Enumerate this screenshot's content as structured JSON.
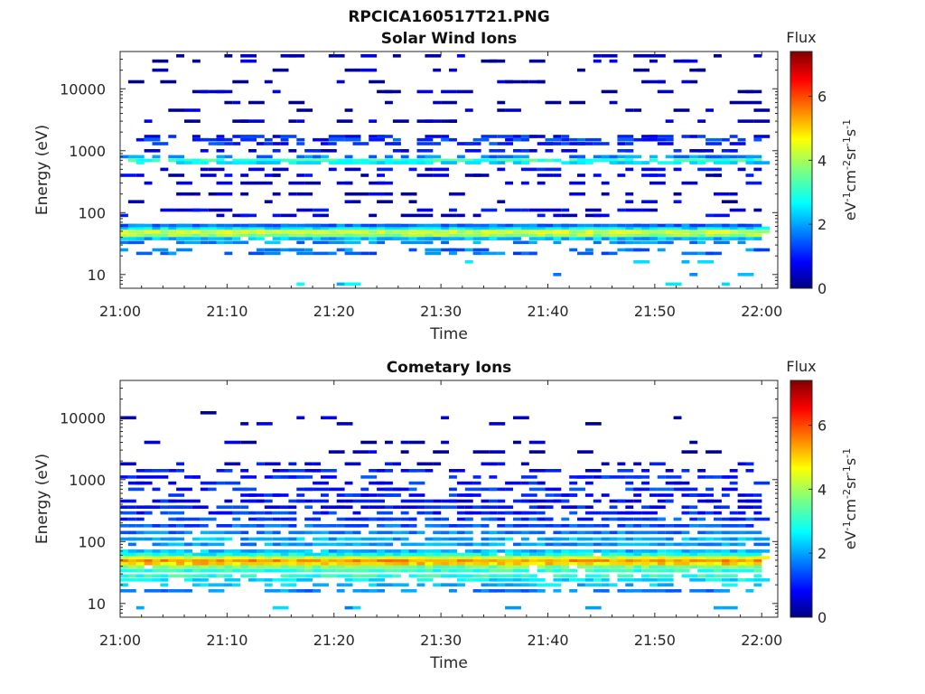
{
  "figure": {
    "title": "RPCICA160517T21.PNG"
  },
  "chart_data": [
    {
      "type": "heatmap",
      "title": "Solar Wind Ions",
      "xlabel": "Time",
      "ylabel": "Energy (eV)",
      "x_ticks": [
        "21:00",
        "21:10",
        "21:20",
        "21:30",
        "21:40",
        "21:50",
        "22:00"
      ],
      "y_ticks": [
        "10",
        "100",
        "1000",
        "10000"
      ],
      "y_scale": "log",
      "ylim": [
        6,
        40000
      ],
      "xlim_minutes": [
        0,
        61.5
      ],
      "colorbar": {
        "label": "Flux",
        "unit": "eV-1cm-2sr-1s-1",
        "ticks": [
          "0",
          "2",
          "4",
          "6"
        ],
        "range": [
          0,
          7.4
        ]
      },
      "bands": [
        {
          "energy": 49,
          "value": 4.3,
          "coverage": 1.0
        },
        {
          "energy": 43,
          "value": 3.8,
          "coverage": 1.0
        },
        {
          "energy": 56,
          "value": 2.6,
          "coverage": 1.0
        },
        {
          "energy": 62,
          "value": 1.6,
          "coverage": 1.0
        },
        {
          "energy": 38,
          "value": 2.2,
          "coverage": 0.9
        },
        {
          "energy": 33,
          "value": 1.9,
          "coverage": 0.45
        },
        {
          "energy": 25,
          "value": 1.7,
          "coverage": 0.3
        },
        {
          "energy": 22,
          "value": 1.6,
          "coverage": 0.3
        },
        {
          "energy": 700,
          "value": 3.1,
          "coverage": 0.75
        },
        {
          "energy": 640,
          "value": 2.4,
          "coverage": 0.6
        },
        {
          "energy": 800,
          "value": 1.8,
          "coverage": 0.55
        },
        {
          "energy": 1500,
          "value": 1.2,
          "coverage": 0.5
        },
        {
          "energy": 1700,
          "value": 1.0,
          "coverage": 0.4
        },
        {
          "energy": 1300,
          "value": 1.1,
          "coverage": 0.45
        },
        {
          "energy": 1000,
          "value": 0.8,
          "coverage": 0.35
        },
        {
          "energy": 500,
          "value": 0.8,
          "coverage": 0.3
        },
        {
          "energy": 400,
          "value": 0.6,
          "coverage": 0.3
        },
        {
          "energy": 300,
          "value": 0.6,
          "coverage": 0.25
        },
        {
          "energy": 200,
          "value": 0.5,
          "coverage": 0.25
        },
        {
          "energy": 150,
          "value": 0.5,
          "coverage": 0.2
        },
        {
          "energy": 110,
          "value": 0.7,
          "coverage": 0.25
        },
        {
          "energy": 90,
          "value": 0.6,
          "coverage": 0.3
        },
        {
          "energy": 3000,
          "value": 0.3,
          "coverage": 0.25
        },
        {
          "energy": 4500,
          "value": 0.3,
          "coverage": 0.2
        },
        {
          "energy": 6000,
          "value": 0.3,
          "coverage": 0.15
        },
        {
          "energy": 9000,
          "value": 0.3,
          "coverage": 0.2
        },
        {
          "energy": 13000,
          "value": 0.3,
          "coverage": 0.15
        },
        {
          "energy": 20000,
          "value": 0.3,
          "coverage": 0.15
        },
        {
          "energy": 28000,
          "value": 0.3,
          "coverage": 0.15
        },
        {
          "energy": 34000,
          "value": 0.3,
          "coverage": 0.2
        },
        {
          "energy": 16,
          "value": 2.2,
          "coverage": 0.08
        },
        {
          "energy": 10,
          "value": 2.0,
          "coverage": 0.03
        },
        {
          "energy": 7,
          "value": 2.3,
          "coverage": 0.06
        }
      ]
    },
    {
      "type": "heatmap",
      "title": "Cometary Ions",
      "xlabel": "Time",
      "ylabel": "Energy (eV)",
      "x_ticks": [
        "21:00",
        "21:10",
        "21:20",
        "21:30",
        "21:40",
        "21:50",
        "22:00"
      ],
      "y_ticks": [
        "10",
        "100",
        "1000",
        "10000"
      ],
      "y_scale": "log",
      "ylim": [
        6,
        40000
      ],
      "xlim_minutes": [
        0,
        61.5
      ],
      "colorbar": {
        "label": "Flux",
        "unit": "eV-1cm-2sr-1s-1",
        "ticks": [
          "0",
          "2",
          "4",
          "6"
        ],
        "range": [
          0,
          7.4
        ]
      },
      "bands": [
        {
          "energy": 49,
          "value": 5.4,
          "coverage": 1.0
        },
        {
          "energy": 44,
          "value": 5.0,
          "coverage": 1.0
        },
        {
          "energy": 55,
          "value": 4.4,
          "coverage": 1.0
        },
        {
          "energy": 39,
          "value": 3.6,
          "coverage": 0.95
        },
        {
          "energy": 34,
          "value": 3.0,
          "coverage": 0.9
        },
        {
          "energy": 62,
          "value": 2.8,
          "coverage": 0.95
        },
        {
          "energy": 70,
          "value": 2.2,
          "coverage": 0.9
        },
        {
          "energy": 28,
          "value": 3.0,
          "coverage": 0.7
        },
        {
          "energy": 24,
          "value": 2.6,
          "coverage": 0.65
        },
        {
          "energy": 20,
          "value": 2.3,
          "coverage": 0.5
        },
        {
          "energy": 16,
          "value": 1.8,
          "coverage": 0.5
        },
        {
          "energy": 90,
          "value": 1.9,
          "coverage": 0.85
        },
        {
          "energy": 110,
          "value": 2.1,
          "coverage": 0.85
        },
        {
          "energy": 140,
          "value": 1.7,
          "coverage": 0.8
        },
        {
          "energy": 180,
          "value": 1.5,
          "coverage": 0.75
        },
        {
          "energy": 230,
          "value": 1.3,
          "coverage": 0.7
        },
        {
          "energy": 290,
          "value": 1.1,
          "coverage": 0.65
        },
        {
          "energy": 360,
          "value": 1.0,
          "coverage": 0.6
        },
        {
          "energy": 450,
          "value": 0.9,
          "coverage": 0.55
        },
        {
          "energy": 560,
          "value": 1.0,
          "coverage": 0.5
        },
        {
          "energy": 700,
          "value": 1.2,
          "coverage": 0.5
        },
        {
          "energy": 880,
          "value": 1.0,
          "coverage": 0.45
        },
        {
          "energy": 1100,
          "value": 1.1,
          "coverage": 0.4
        },
        {
          "energy": 1400,
          "value": 0.9,
          "coverage": 0.35
        },
        {
          "energy": 1800,
          "value": 0.7,
          "coverage": 0.3
        },
        {
          "energy": 2800,
          "value": 0.4,
          "coverage": 0.15
        },
        {
          "energy": 4000,
          "value": 0.3,
          "coverage": 0.12
        },
        {
          "energy": 8000,
          "value": 0.3,
          "coverage": 0.06
        },
        {
          "energy": 10000,
          "value": 0.3,
          "coverage": 0.05
        },
        {
          "energy": 12000,
          "value": 0.3,
          "coverage": 0.03
        },
        {
          "energy": 8.5,
          "value": 2.0,
          "coverage": 0.12
        }
      ]
    }
  ]
}
